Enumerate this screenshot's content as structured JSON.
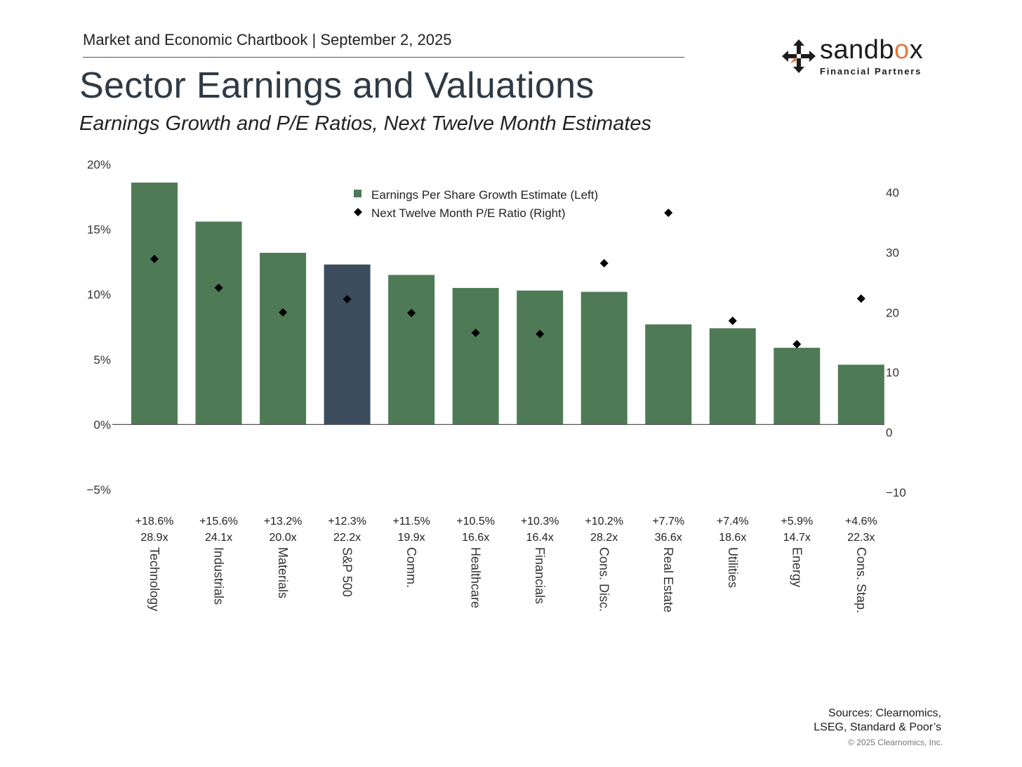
{
  "header": {
    "chartbook": "Market and Economic Chartbook | September 2, 2025",
    "title": "Sector Earnings and Valuations",
    "subtitle": "Earnings Growth and P/E Ratios, Next Twelve Month Estimates"
  },
  "logo": {
    "word_start": "sandb",
    "word_accent": "o",
    "word_end": "x",
    "sub": "Financial Partners",
    "accent_color": "#e07a3f"
  },
  "footer": {
    "sources_line1": "Sources: Clearnomics,",
    "sources_line2": "LSEG, Standard & Poor’s",
    "copyright": "© 2025 Clearnomics, Inc."
  },
  "colors": {
    "bar": "#4f7a56",
    "highlight_bar": "#3b4c5c",
    "marker": "#000000"
  },
  "chart_data": {
    "type": "bar",
    "categories": [
      "Technology",
      "Industrials",
      "Materials",
      "S&P 500",
      "Comm.",
      "Healthcare",
      "Financials",
      "Cons. Disc.",
      "Real Estate",
      "Utilities",
      "Energy",
      "Cons. Stap."
    ],
    "highlight": "S&P 500",
    "series": [
      {
        "name": "Earnings Per Share Growth Estimate (Left)",
        "type": "bar",
        "axis": "left",
        "values": [
          18.6,
          15.6,
          13.2,
          12.3,
          11.5,
          10.5,
          10.3,
          10.2,
          7.7,
          7.4,
          5.9,
          4.6
        ]
      },
      {
        "name": "Next Twelve Month P/E Ratio (Right)",
        "type": "scatter",
        "marker": "diamond",
        "axis": "right",
        "values": [
          28.9,
          24.1,
          20.0,
          22.2,
          19.9,
          16.6,
          16.4,
          28.2,
          36.6,
          18.6,
          14.7,
          22.3
        ]
      }
    ],
    "growth_labels": [
      "+18.6%",
      "+15.6%",
      "+13.2%",
      "+12.3%",
      "+11.5%",
      "+10.5%",
      "+10.3%",
      "+10.2%",
      "+7.7%",
      "+7.4%",
      "+5.9%",
      "+4.6%"
    ],
    "pe_labels": [
      "28.9x",
      "24.1x",
      "20.0x",
      "22.2x",
      "19.9x",
      "16.6x",
      "16.4x",
      "28.2x",
      "36.6x",
      "18.6x",
      "14.7x",
      "22.3x"
    ],
    "left_axis": {
      "ylim": [
        -5,
        20
      ],
      "ticks": [
        20,
        15,
        10,
        5,
        0,
        -5
      ],
      "tick_labels": [
        "20%",
        "15%",
        "10%",
        "5%",
        "0%",
        "−5%"
      ]
    },
    "right_axis": {
      "ylim": [
        -10,
        40
      ],
      "ticks": [
        40,
        30,
        20,
        10,
        0,
        -10
      ],
      "tick_labels": [
        "40",
        "30",
        "20",
        "10",
        "0",
        "−10"
      ]
    },
    "legend_position": "top-center",
    "grid": false
  }
}
